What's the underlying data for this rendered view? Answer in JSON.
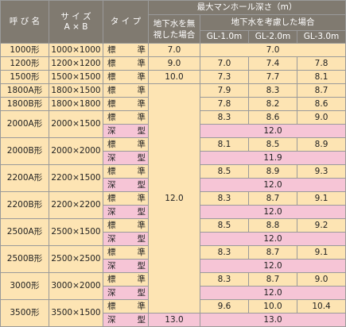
{
  "header": {
    "name": "呼 び 名",
    "size_line1": "サ イ ズ",
    "size_line2": "A × B",
    "type": "タ イ プ",
    "max_depth": "最大マンホール深さ（m）",
    "no_groundwater_line1": "地下水を無",
    "no_groundwater_line2": "視した場合",
    "with_groundwater": "地下水を考慮した場合",
    "gl1": "GL-1.0m",
    "gl2": "GL-2.0m",
    "gl3": "GL-3.0m"
  },
  "rows": [
    {
      "name": "1000形",
      "size": "1000×1000",
      "type_a": "標",
      "type_b": "準",
      "nogw": "7.0",
      "merged": "7.0"
    },
    {
      "name": "1200形",
      "size": "1200×1200",
      "type_a": "標",
      "type_b": "準",
      "nogw": "9.0",
      "gl1": "7.0",
      "gl2": "7.4",
      "gl3": "7.8"
    },
    {
      "name": "1500形",
      "size": "1500×1500",
      "type_a": "標",
      "type_b": "準",
      "nogw": "10.0",
      "gl1": "7.3",
      "gl2": "7.7",
      "gl3": "8.1"
    },
    {
      "name": "1800A形",
      "size": "1800×1500",
      "type_a": "標",
      "type_b": "準",
      "gl1": "7.9",
      "gl2": "8.3",
      "gl3": "8.7"
    },
    {
      "name": "1800B形",
      "size": "1800×1800",
      "type_a": "標",
      "type_b": "準",
      "gl1": "7.8",
      "gl2": "8.2",
      "gl3": "8.6"
    },
    {
      "name": "2000A形",
      "size": "2000×1500",
      "type_a": "標",
      "type_b": "準",
      "gl1": "8.3",
      "gl2": "8.6",
      "gl3": "9.0"
    },
    {
      "type_a": "深",
      "type_b": "型",
      "merged": "12.0"
    },
    {
      "name": "2000B形",
      "size": "2000×2000",
      "type_a": "標",
      "type_b": "準",
      "gl1": "8.1",
      "gl2": "8.5",
      "gl3": "8.9"
    },
    {
      "type_a": "深",
      "type_b": "型",
      "merged": "11.9"
    },
    {
      "name": "2200A形",
      "size": "2200×1500",
      "type_a": "標",
      "type_b": "準",
      "gl1": "8.5",
      "gl2": "8.9",
      "gl3": "9.3"
    },
    {
      "type_a": "深",
      "type_b": "型",
      "merged": "12.0"
    },
    {
      "name": "2200B形",
      "size": "2200×2200",
      "type_a": "標",
      "type_b": "準",
      "gl1": "8.3",
      "gl2": "8.7",
      "gl3": "9.1"
    },
    {
      "type_a": "深",
      "type_b": "型",
      "merged": "12.0"
    },
    {
      "name": "2500A形",
      "size": "2500×1500",
      "type_a": "標",
      "type_b": "準",
      "gl1": "8.5",
      "gl2": "8.8",
      "gl3": "9.2"
    },
    {
      "type_a": "深",
      "type_b": "型",
      "merged": "12.0"
    },
    {
      "name": "2500B形",
      "size": "2500×2500",
      "type_a": "標",
      "type_b": "準",
      "gl1": "8.3",
      "gl2": "8.7",
      "gl3": "9.1"
    },
    {
      "type_a": "深",
      "type_b": "型",
      "merged": "12.0"
    },
    {
      "name": "3000形",
      "size": "3000×2000",
      "type_a": "標",
      "type_b": "準",
      "gl1": "8.3",
      "gl2": "8.7",
      "gl3": "9.0"
    },
    {
      "type_a": "深",
      "type_b": "型",
      "merged": "12.0"
    },
    {
      "name": "3500形",
      "size": "3500×1500",
      "type_a": "標",
      "type_b": "準",
      "gl1": "9.6",
      "gl2": "10.0",
      "gl3": "10.4"
    },
    {
      "type_a": "深",
      "type_b": "型",
      "nogw": "13.0",
      "merged": "13.0"
    }
  ],
  "merged_nogw": "12.0"
}
